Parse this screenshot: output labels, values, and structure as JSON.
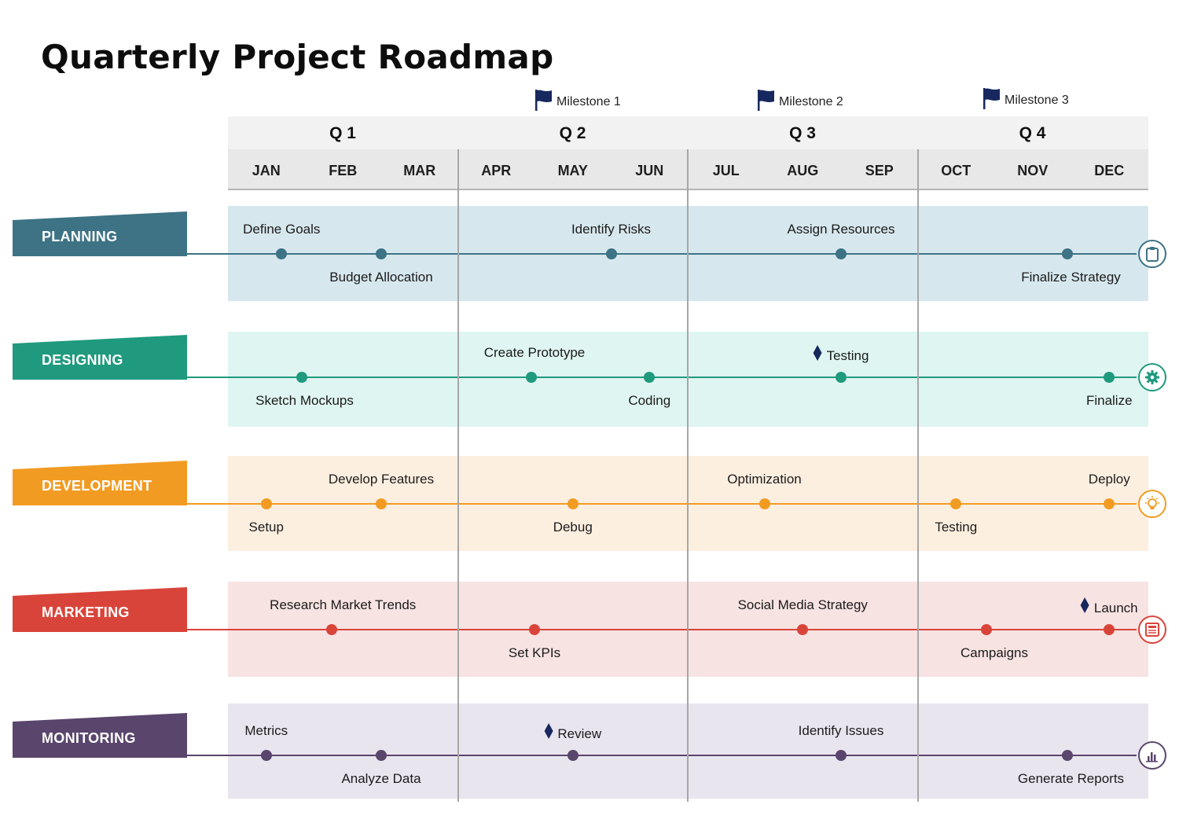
{
  "title": "Quarterly Project Roadmap",
  "milestones": [
    {
      "label": "Milestone 1",
      "month": 4
    },
    {
      "label": "Milestone 2",
      "month": 7
    },
    {
      "label": "Milestone 3",
      "month": 10
    }
  ],
  "quarters": [
    "Q 1",
    "Q 2",
    "Q 3",
    "Q 4"
  ],
  "months": [
    "JAN",
    "FEB",
    "MAR",
    "APR",
    "MAY",
    "JUN",
    "JUL",
    "AUG",
    "SEP",
    "OCT",
    "NOV",
    "DEC"
  ],
  "colors": {
    "milestone_flag": "#16285e",
    "diamond": "#16285e"
  },
  "rows": [
    {
      "name": "PLANNING",
      "color": "#3d7385",
      "band": "#d7e7ee",
      "icon": "clipboard-icon",
      "tasks": [
        {
          "label": "Define Goals",
          "month": 0.2,
          "pos": "above",
          "dot": 0.2
        },
        {
          "label": "Budget Allocation",
          "month": 1.5,
          "pos": "below",
          "dot": 1.5
        },
        {
          "label": "Identify Risks",
          "month": 4.5,
          "pos": "above",
          "dot": 4.5
        },
        {
          "label": "Assign Resources",
          "month": 7.5,
          "pos": "above",
          "dot": 7.5
        },
        {
          "label": "Finalize Strategy",
          "month": 10.5,
          "pos": "below",
          "dot": 10.45
        }
      ]
    },
    {
      "name": "DESIGNING",
      "color": "#1f9a7e",
      "band": "#dff5f1",
      "icon": "gear-icon",
      "tasks": [
        {
          "label": "Sketch Mockups",
          "month": 0.5,
          "pos": "below",
          "dot": 0.46
        },
        {
          "label": "Create Prototype",
          "month": 3.5,
          "pos": "above",
          "dot": 3.46
        },
        {
          "label": "Coding",
          "month": 5.0,
          "pos": "below",
          "dot": 5.0
        },
        {
          "label": "Testing",
          "month": 7.5,
          "pos": "above",
          "dot": 7.5,
          "diamond": true
        },
        {
          "label": "Finalize",
          "month": 11.0,
          "pos": "below",
          "dot": 11.0
        }
      ]
    },
    {
      "name": "DEVELOPMENT",
      "color": "#f29b22",
      "band": "#fdefe0",
      "icon": "lightbulb-icon",
      "tasks": [
        {
          "label": "Setup",
          "month": 0.0,
          "pos": "below",
          "dot": 0.0
        },
        {
          "label": "Develop Features",
          "month": 1.5,
          "pos": "above",
          "dot": 1.5
        },
        {
          "label": "Debug",
          "month": 4.0,
          "pos": "below",
          "dot": 4.0
        },
        {
          "label": "Optimization",
          "month": 6.5,
          "pos": "above",
          "dot": 6.5
        },
        {
          "label": "Testing",
          "month": 9.0,
          "pos": "below",
          "dot": 9.0
        },
        {
          "label": "Deploy",
          "month": 11.0,
          "pos": "above",
          "dot": 11.0
        }
      ]
    },
    {
      "name": "MARKETING",
      "color": "#d9443a",
      "band": "#f7e3e2",
      "icon": "newspaper-icon",
      "tasks": [
        {
          "label": "Research Market Trends",
          "month": 1.0,
          "pos": "above",
          "dot": 0.85
        },
        {
          "label": "Set KPIs",
          "month": 3.5,
          "pos": "below",
          "dot": 3.5
        },
        {
          "label": "Social Media Strategy",
          "month": 7.0,
          "pos": "above",
          "dot": 7.0
        },
        {
          "label": "Campaigns",
          "month": 9.5,
          "pos": "below",
          "dot": 9.4
        },
        {
          "label": "Launch",
          "month": 11.0,
          "pos": "above",
          "dot": 11.0,
          "diamond": true
        }
      ]
    },
    {
      "name": "MONITORING",
      "color": "#5a456d",
      "band": "#e9e5ef",
      "icon": "bar-chart-icon",
      "tasks": [
        {
          "label": "Metrics",
          "month": 0.0,
          "pos": "above",
          "dot": 0.0
        },
        {
          "label": "Analyze Data",
          "month": 1.5,
          "pos": "below",
          "dot": 1.5
        },
        {
          "label": "Review",
          "month": 4.0,
          "pos": "above",
          "dot": 4.0,
          "diamond": true
        },
        {
          "label": "Identify Issues",
          "month": 7.5,
          "pos": "above",
          "dot": 7.5
        },
        {
          "label": "Generate Reports",
          "month": 10.5,
          "pos": "below",
          "dot": 10.45
        }
      ]
    }
  ]
}
